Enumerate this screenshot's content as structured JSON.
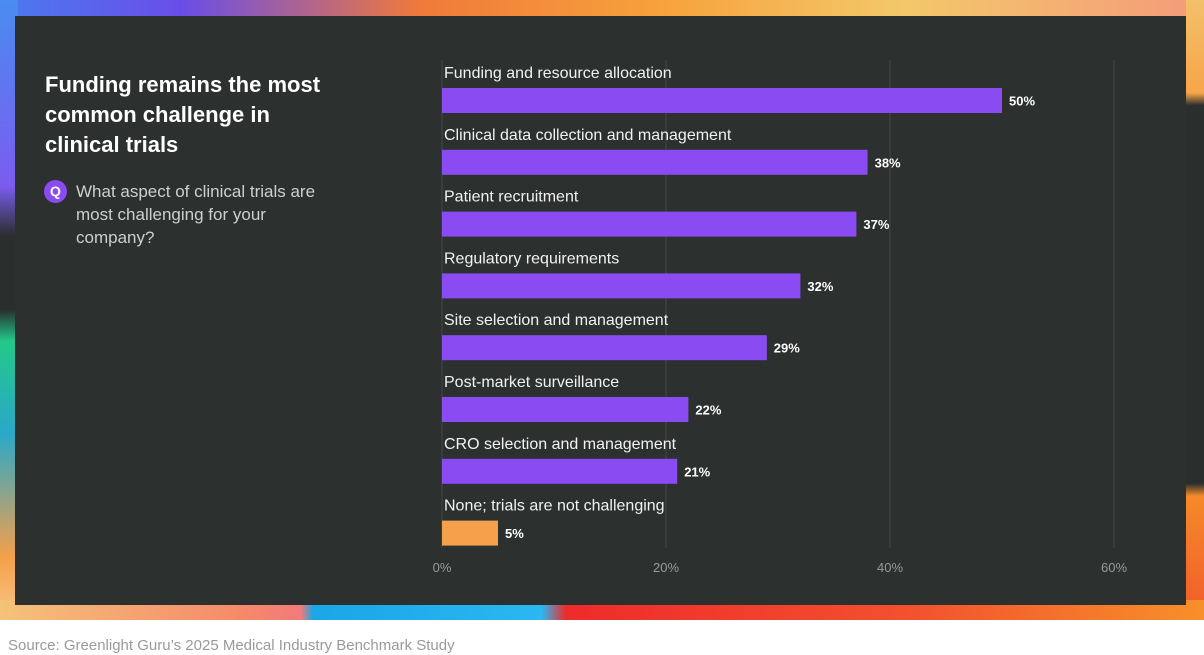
{
  "title": "Funding remains the most common challenge in clinical trials",
  "question_badge": "Q",
  "question": "What aspect of clinical trials are most challenging for your company?",
  "source": "Source: Greenlight Guru’s 2025 Medical Industry Benchmark Study",
  "colors": {
    "bar": "#8a4cf2",
    "bar_highlight": "#f5a04a",
    "gridline": "#454a49",
    "panel": "#2c302f"
  },
  "chart_data": {
    "type": "bar",
    "orientation": "horizontal",
    "title": "Funding remains the most common challenge in clinical trials",
    "categories": [
      "Funding and resource allocation",
      "Clinical data collection and management",
      "Patient recruitment",
      "Regulatory requirements",
      "Site selection and management",
      "Post-market surveillance",
      "CRO selection and management",
      "None; trials are not challenging"
    ],
    "values": [
      50,
      38,
      37,
      32,
      29,
      22,
      21,
      5
    ],
    "value_labels": [
      "50%",
      "38%",
      "37%",
      "32%",
      "29%",
      "22%",
      "21%",
      "5%"
    ],
    "highlight_index": 7,
    "xlim": [
      0,
      60
    ],
    "xticks": [
      0,
      20,
      40,
      60
    ],
    "xtick_labels": [
      "0%",
      "20%",
      "40%",
      "60%"
    ],
    "grid": true,
    "xlabel": "",
    "ylabel": ""
  }
}
